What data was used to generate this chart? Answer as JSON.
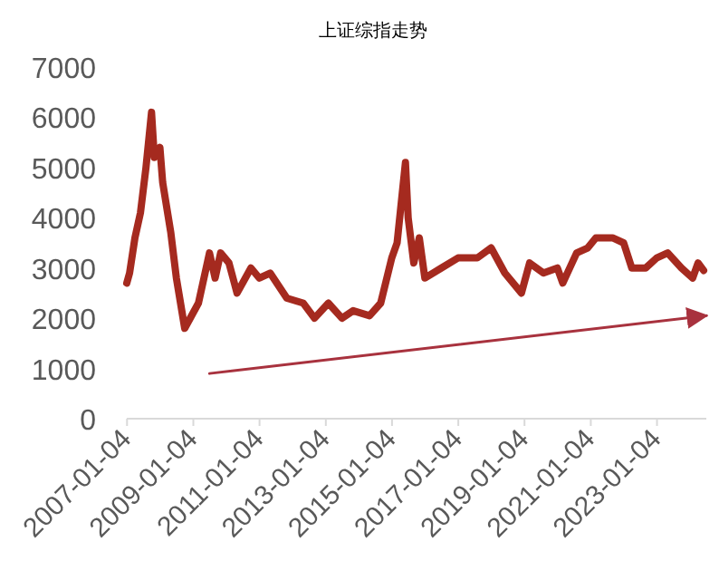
{
  "chart_data": {
    "type": "line",
    "title": "上证综指走势",
    "x": [
      "2007-01",
      "2007-02",
      "2007-04",
      "2007-06",
      "2007-08",
      "2007-10",
      "2007-11",
      "2008-01",
      "2008-02",
      "2008-05",
      "2008-07",
      "2008-10",
      "2009-03",
      "2009-07",
      "2009-09",
      "2009-11",
      "2010-02",
      "2010-05",
      "2010-10",
      "2011-01",
      "2011-05",
      "2011-11",
      "2012-05",
      "2012-09",
      "2013-02",
      "2013-07",
      "2013-11",
      "2014-05",
      "2014-09",
      "2015-01",
      "2015-03",
      "2015-06",
      "2015-07",
      "2015-09",
      "2015-11",
      "2016-01",
      "2016-07",
      "2017-01",
      "2017-08",
      "2018-01",
      "2018-06",
      "2018-12",
      "2019-03",
      "2019-08",
      "2020-01",
      "2020-03",
      "2020-08",
      "2020-12",
      "2021-03",
      "2021-09",
      "2022-01",
      "2022-04",
      "2022-09",
      "2023-01",
      "2023-05",
      "2023-10",
      "2024-02",
      "2024-04",
      "2024-06"
    ],
    "series": [
      {
        "color": "#a52a1f",
        "values": [
          2700,
          2900,
          3600,
          4100,
          5000,
          6100,
          5200,
          5400,
          4700,
          3700,
          2800,
          1800,
          2300,
          3300,
          2800,
          3300,
          3100,
          2500,
          3000,
          2800,
          2900,
          2400,
          2300,
          2000,
          2300,
          2000,
          2150,
          2050,
          2300,
          3200,
          3500,
          5100,
          4000,
          3100,
          3600,
          2800,
          3000,
          3200,
          3200,
          3400,
          2900,
          2500,
          3100,
          2900,
          3000,
          2700,
          3300,
          3400,
          3600,
          3600,
          3500,
          3000,
          3000,
          3200,
          3300,
          3000,
          2800,
          3100,
          2950
        ]
      },
      {
        "type": "line",
        "color": "#a8323e",
        "x": [
          "2009-07",
          "2024-07"
        ],
        "values": [
          900,
          2050
        ]
      }
    ],
    "xlim": [
      "2007-01-01",
      "2024-07-01"
    ],
    "xticks": [
      "2007-01-04",
      "2009-01-04",
      "2011-01-04",
      "2013-01-04",
      "2015-01-04",
      "2017-01-04",
      "2019-01-04",
      "2021-01-04",
      "2023-01-04"
    ],
    "ylim": [
      0,
      7000
    ],
    "yticks": [
      0,
      1000,
      2000,
      3000,
      4000,
      5000,
      6000,
      7000
    ],
    "grid": false
  }
}
